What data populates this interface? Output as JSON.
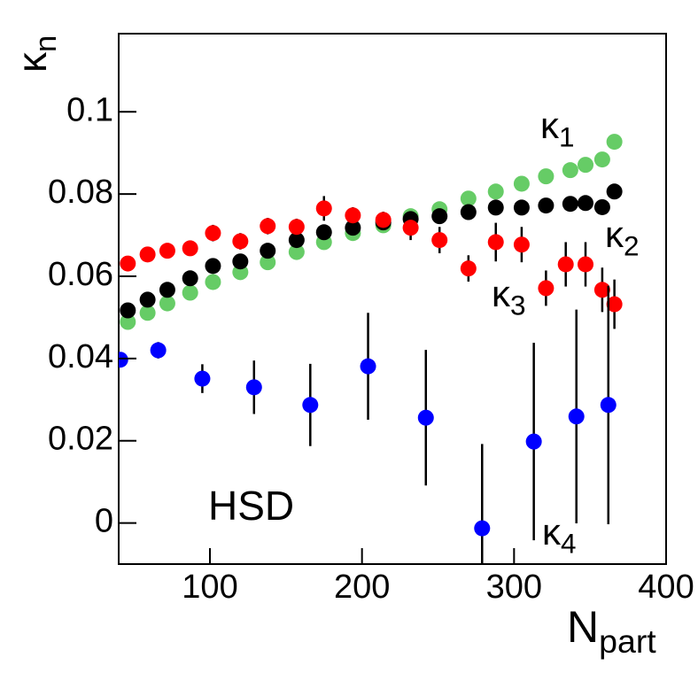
{
  "chart_data": {
    "type": "scatter",
    "xlim": [
      40,
      400
    ],
    "ylim": [
      -0.01,
      0.119
    ],
    "xticks": [
      100,
      200,
      300,
      400
    ],
    "yticks": [
      0,
      0.02,
      0.04,
      0.06,
      0.08,
      0.1
    ],
    "x_label": {
      "text": "N",
      "subscript": "part"
    },
    "y_label": {
      "text": "κ",
      "subscript": "n"
    },
    "annotations": [
      {
        "text": "HSD"
      },
      {
        "text": "κ",
        "subscript": "1",
        "color": "#66cc66"
      },
      {
        "text": "κ",
        "subscript": "2",
        "color": "#000000"
      },
      {
        "text": "κ",
        "subscript": "3",
        "color": "#ff0000"
      },
      {
        "text": "κ",
        "subscript": "4",
        "color": "#0000ff"
      }
    ],
    "series": [
      {
        "color": "#66cc66",
        "x": [
          46,
          59,
          72,
          87,
          102,
          120,
          138,
          157,
          175,
          194,
          214,
          232,
          251,
          270,
          288,
          305,
          321,
          337,
          347,
          358,
          366
        ],
        "values": [
          0.0489,
          0.0511,
          0.0534,
          0.056,
          0.0586,
          0.061,
          0.0634,
          0.0659,
          0.0683,
          0.0705,
          0.0724,
          0.0746,
          0.0763,
          0.0789,
          0.0806,
          0.0825,
          0.0843,
          0.0858,
          0.0871,
          0.0884,
          0.0927
        ],
        "errors": [
          0,
          0,
          0,
          0,
          0,
          0,
          0,
          0,
          0,
          0,
          0,
          0,
          0,
          0,
          0,
          0,
          0,
          0,
          0,
          0,
          0
        ]
      },
      {
        "color": "#000000",
        "x": [
          46,
          59,
          72,
          87,
          102,
          120,
          138,
          157,
          175,
          194,
          214,
          232,
          251,
          270,
          288,
          305,
          321,
          337,
          347,
          358,
          366
        ],
        "values": [
          0.0517,
          0.0543,
          0.0567,
          0.0595,
          0.0625,
          0.0636,
          0.0662,
          0.0688,
          0.0707,
          0.0718,
          0.0731,
          0.0739,
          0.0746,
          0.0756,
          0.0767,
          0.0767,
          0.0772,
          0.0776,
          0.0778,
          0.0768,
          0.0806
        ],
        "errors": [
          0.001,
          0.001,
          0.001,
          0.001,
          0.001,
          0.001,
          0.001,
          0.001,
          0.001,
          0.001,
          0.001,
          0.001,
          0.001,
          0.001,
          0.001,
          0.001,
          0.001,
          0.001,
          0.001,
          0.001,
          0.001
        ]
      },
      {
        "color": "#ff0000",
        "x": [
          46,
          59,
          72,
          87,
          102,
          120,
          138,
          157,
          175,
          194,
          214,
          232,
          251,
          270,
          288,
          305,
          321,
          334,
          347,
          358,
          366
        ],
        "values": [
          0.0631,
          0.0653,
          0.0662,
          0.0668,
          0.0705,
          0.0685,
          0.0722,
          0.072,
          0.0765,
          0.0748,
          0.0737,
          0.0718,
          0.0688,
          0.0619,
          0.0683,
          0.0677,
          0.0571,
          0.0629,
          0.0629,
          0.0567,
          0.0532
        ],
        "errors": [
          0.001,
          0.001,
          0.001,
          0.001,
          0.002,
          0.002,
          0.002,
          0.002,
          0.003,
          0.002,
          0.002,
          0.003,
          0.0032,
          0.0032,
          0.0047,
          0.0043,
          0.0043,
          0.0054,
          0.0054,
          0.0054,
          0.006
        ]
      },
      {
        "color": "#0000ff",
        "x": [
          41,
          66,
          95,
          129,
          166,
          204,
          242,
          279,
          313,
          341,
          362
        ],
        "values": [
          0.0397,
          0.042,
          0.0351,
          0.033,
          0.0287,
          0.0381,
          0.0256,
          -0.0013,
          0.0198,
          0.0259,
          0.0287
        ],
        "errors": [
          0.001,
          0.002,
          0.0035,
          0.0065,
          0.01,
          0.013,
          0.0165,
          0.0205,
          0.024,
          0.026,
          0.029
        ]
      }
    ]
  }
}
